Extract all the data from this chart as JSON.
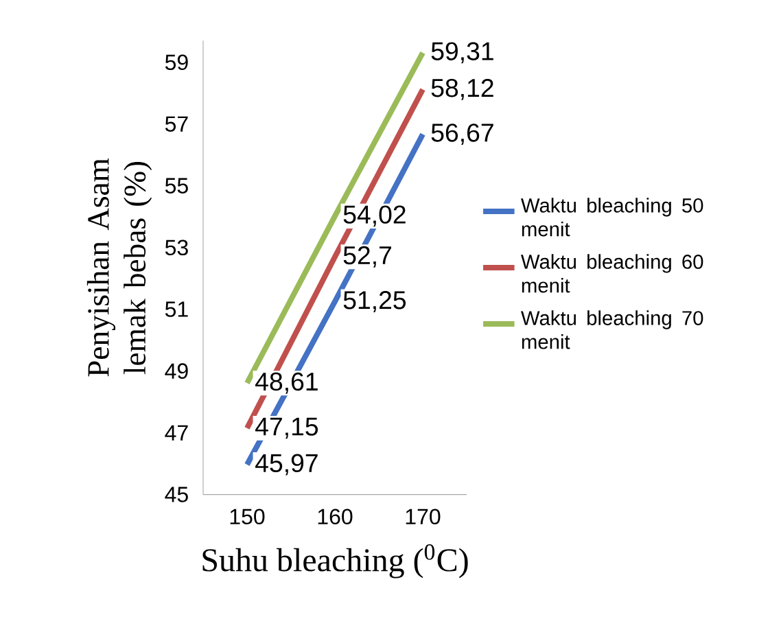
{
  "chart_data": {
    "type": "line",
    "xlabel": "Suhu bleaching ($^{0}$C)",
    "ylabel": "Penyisihan Asam lemak bebas (%)",
    "categories": [
      "150",
      "160",
      "170"
    ],
    "series": [
      {
        "name": "Waktu bleaching 50 menit",
        "color": "#4472c4",
        "values": [
          45.97,
          51.25,
          56.67
        ],
        "value_labels": [
          "45,97",
          "51,25",
          "56,67"
        ]
      },
      {
        "name": "Waktu bleaching 60 menit",
        "color": "#c0504d",
        "values": [
          47.15,
          52.7,
          58.12
        ],
        "value_labels": [
          "47,15",
          "52,7",
          "58,12"
        ]
      },
      {
        "name": "Waktu bleaching 70 menit",
        "color": "#9bbb59",
        "values": [
          48.61,
          54.02,
          59.31
        ],
        "value_labels": [
          "48,61",
          "54,02",
          "59,31"
        ]
      }
    ],
    "ylim": [
      45,
      59.7
    ],
    "yticks": [
      45,
      47,
      49,
      51,
      53,
      55,
      57,
      59
    ],
    "legend": "right",
    "grid": false,
    "marker": "none",
    "line_style": "solid"
  }
}
